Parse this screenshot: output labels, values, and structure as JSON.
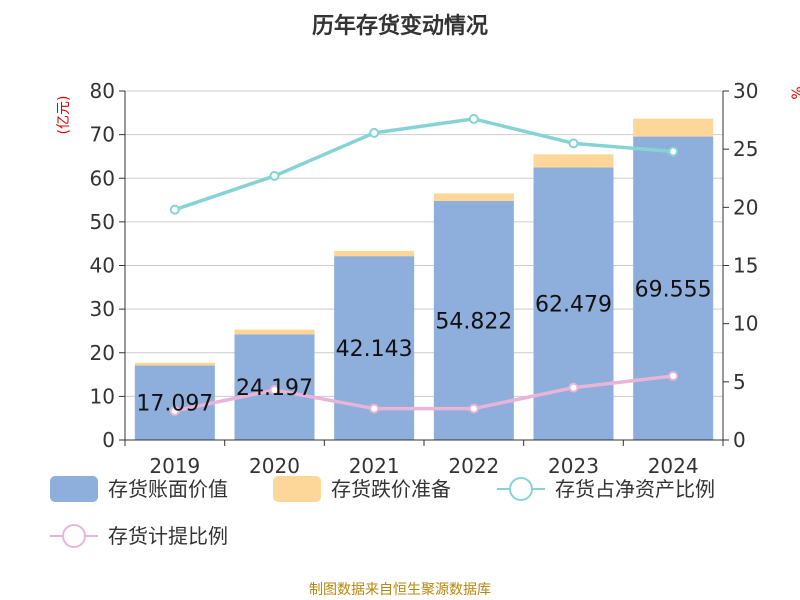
{
  "page": {
    "title": "历年存货变动情况",
    "source": "制图数据来自恒生聚源数据库",
    "source_color": "#b8860b"
  },
  "chart_data": {
    "type": "bar",
    "title": "历年存货变动情况",
    "categories": [
      "2019",
      "2020",
      "2021",
      "2022",
      "2023",
      "2024"
    ],
    "y_left": {
      "label": "(亿元)",
      "label_color": "#e00000",
      "ylim": [
        0,
        80
      ],
      "ticks": [
        0,
        10,
        20,
        30,
        40,
        50,
        60,
        70,
        80
      ]
    },
    "y_right": {
      "label": "%",
      "label_color": "#e00000",
      "ylim": [
        0,
        30
      ],
      "ticks": [
        0,
        5,
        10,
        15,
        20,
        25,
        30
      ]
    },
    "grid": true,
    "legend": "bottom",
    "series": [
      {
        "name": "存货账面价值",
        "type": "bar",
        "axis": "left",
        "stack": "inventory",
        "color": "#8eaedb",
        "values": [
          17.097,
          24.197,
          42.143,
          54.822,
          62.479,
          69.555
        ],
        "labels": [
          "17.097",
          "24.197",
          "42.143",
          "54.822",
          "62.479",
          "69.555"
        ]
      },
      {
        "name": "存货跌价准备",
        "type": "bar",
        "axis": "left",
        "stack": "inventory",
        "color": "#fdd699",
        "values": [
          0.6,
          1.1,
          1.2,
          1.7,
          3.0,
          4.1
        ]
      },
      {
        "name": "存货占净资产比例",
        "type": "line",
        "axis": "right",
        "color": "#86d3d6",
        "values": [
          19.8,
          22.7,
          26.4,
          27.6,
          25.5,
          24.8
        ]
      },
      {
        "name": "存货计提比例",
        "type": "line",
        "axis": "right",
        "color": "#e8b4d8",
        "values": [
          2.5,
          4.3,
          2.7,
          2.7,
          4.5,
          5.5
        ]
      }
    ]
  }
}
